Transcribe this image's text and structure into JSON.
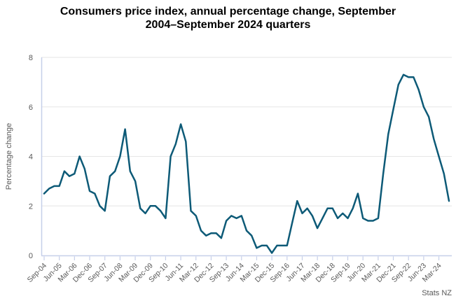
{
  "title": {
    "line1": "Consumers price index, annual percentage change, September",
    "line2": "2004–September 2024 quarters"
  },
  "source_label": "Stats NZ",
  "colors": {
    "line": "#0D5A77",
    "grid": "#E6E6E6",
    "axis": "#C6CFE9",
    "text": "#595959",
    "title_text": "#000000",
    "background": "#FFFFFF"
  },
  "chart_data": {
    "type": "line",
    "title": "Consumers price index, annual percentage change, September 2004–September 2024 quarters",
    "xlabel": "",
    "ylabel": "Percentage change",
    "ylim": [
      0,
      8
    ],
    "yticks": [
      0,
      2,
      4,
      6,
      8
    ],
    "x_tick_every": 3,
    "grid": true,
    "legend_position": "none",
    "x": [
      "Sep-04",
      "Dec-04",
      "Mar-05",
      "Jun-05",
      "Sep-05",
      "Dec-05",
      "Mar-06",
      "Jun-06",
      "Sep-06",
      "Dec-06",
      "Mar-07",
      "Jun-07",
      "Sep-07",
      "Dec-07",
      "Mar-08",
      "Jun-08",
      "Sep-08",
      "Dec-08",
      "Mar-09",
      "Jun-09",
      "Sep-09",
      "Dec-09",
      "Mar-10",
      "Jun-10",
      "Sep-10",
      "Dec-10",
      "Mar-11",
      "Jun-11",
      "Sep-11",
      "Dec-11",
      "Mar-12",
      "Jun-12",
      "Sep-12",
      "Dec-12",
      "Mar-13",
      "Jun-13",
      "Sep-13",
      "Dec-13",
      "Mar-14",
      "Jun-14",
      "Sep-14",
      "Dec-14",
      "Mar-15",
      "Jun-15",
      "Sep-15",
      "Dec-15",
      "Mar-16",
      "Jun-16",
      "Sep-16",
      "Dec-16",
      "Mar-17",
      "Jun-17",
      "Sep-17",
      "Dec-17",
      "Mar-18",
      "Jun-18",
      "Sep-18",
      "Dec-18",
      "Mar-19",
      "Jun-19",
      "Sep-19",
      "Dec-19",
      "Mar-20",
      "Jun-20",
      "Sep-20",
      "Dec-20",
      "Mar-21",
      "Jun-21",
      "Sep-21",
      "Dec-21",
      "Mar-22",
      "Jun-22",
      "Sep-22",
      "Dec-22",
      "Mar-23",
      "Jun-23",
      "Sep-23",
      "Dec-23",
      "Mar-24",
      "Jun-24",
      "Sep-24"
    ],
    "series": [
      {
        "name": "CPI annual percentage change",
        "values": [
          2.5,
          2.7,
          2.8,
          2.8,
          3.4,
          3.2,
          3.3,
          4.0,
          3.5,
          2.6,
          2.5,
          2.0,
          1.8,
          3.2,
          3.4,
          4.0,
          5.1,
          3.4,
          3.0,
          1.9,
          1.7,
          2.0,
          2.0,
          1.8,
          1.5,
          4.0,
          4.5,
          5.3,
          4.6,
          1.8,
          1.6,
          1.0,
          0.8,
          0.9,
          0.9,
          0.7,
          1.4,
          1.6,
          1.5,
          1.6,
          1.0,
          0.8,
          0.3,
          0.4,
          0.4,
          0.1,
          0.4,
          0.4,
          0.4,
          1.3,
          2.2,
          1.7,
          1.9,
          1.6,
          1.1,
          1.5,
          1.9,
          1.9,
          1.5,
          1.7,
          1.5,
          1.9,
          2.5,
          1.5,
          1.4,
          1.4,
          1.5,
          3.3,
          4.9,
          5.9,
          6.9,
          7.3,
          7.2,
          7.2,
          6.7,
          6.0,
          5.6,
          4.7,
          4.0,
          3.3,
          2.2
        ]
      }
    ]
  }
}
